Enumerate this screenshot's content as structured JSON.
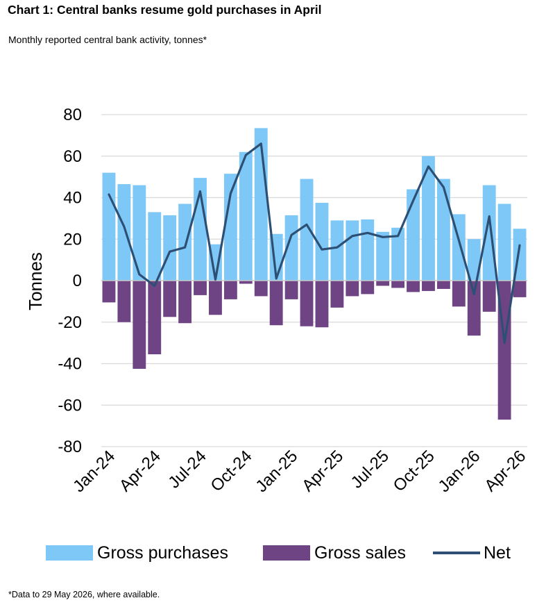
{
  "title": "Chart 1: Central banks resume gold purchases in April",
  "subtitle": "Monthly reported central bank activity, tonnes*",
  "footnote": "*Data to 29 May 2026, where available.",
  "colors": {
    "purchases": "#7ec8f7",
    "sales": "#6e4485",
    "net": "#2e4f74",
    "grid": "#d9d9d9"
  },
  "chart_data": {
    "type": "bar",
    "ylabel": "Tonnes",
    "ylim": [
      -80,
      80
    ],
    "yticks": [
      80,
      60,
      40,
      20,
      0,
      -20,
      -40,
      -60,
      -80
    ],
    "grid": true,
    "legend_position": "bottom",
    "categories": [
      "Jan-24",
      "Feb-24",
      "Mar-24",
      "Apr-24",
      "May-24",
      "Jun-24",
      "Jul-24",
      "Aug-24",
      "Sep-24",
      "Oct-24",
      "Nov-24",
      "Dec-24",
      "Jan-25",
      "Feb-25",
      "Mar-25",
      "Apr-25",
      "May-25",
      "Jun-25",
      "Jul-25",
      "Aug-25",
      "Sep-25",
      "Oct-25",
      "Nov-25",
      "Dec-25",
      "Jan-26",
      "Feb-26",
      "Mar-26",
      "Apr-26"
    ],
    "xtick_labels": [
      "Jan-24",
      "Apr-24",
      "Jul-24",
      "Oct-24",
      "Jan-25",
      "Apr-25",
      "Jul-25",
      "Oct-25",
      "Jan-26",
      "Apr-26"
    ],
    "xtick_indices": [
      0,
      3,
      6,
      9,
      12,
      15,
      18,
      21,
      24,
      27
    ],
    "series": [
      {
        "name": "Gross purchases",
        "type": "bar",
        "values": [
          52,
          46.5,
          46,
          33,
          31.5,
          37,
          49.5,
          17.5,
          51.5,
          62,
          73.5,
          22.5,
          31.5,
          49,
          37.5,
          29,
          29,
          29.5,
          23.5,
          25.5,
          44,
          60,
          49,
          32,
          20,
          46,
          37,
          25
        ]
      },
      {
        "name": "Gross sales",
        "type": "bar",
        "values": [
          -10.5,
          -20,
          -42.5,
          -35.5,
          -17.5,
          -20.5,
          -7,
          -16.5,
          -9,
          -1.5,
          -7.5,
          -21.5,
          -9,
          -22,
          -22.5,
          -13,
          -7.5,
          -6.5,
          -2.5,
          -3.5,
          -5.5,
          -5,
          -4,
          -12.5,
          -26.5,
          -15,
          -67,
          -8
        ]
      },
      {
        "name": "Net",
        "type": "line",
        "values": [
          41.5,
          26,
          3,
          -2.5,
          14,
          16,
          43,
          0.5,
          42,
          60.5,
          66,
          1,
          22,
          27,
          15,
          16,
          21.5,
          23,
          21,
          21.5,
          38.5,
          55,
          45,
          19.5,
          -6.5,
          31,
          -30,
          17
        ]
      }
    ]
  }
}
